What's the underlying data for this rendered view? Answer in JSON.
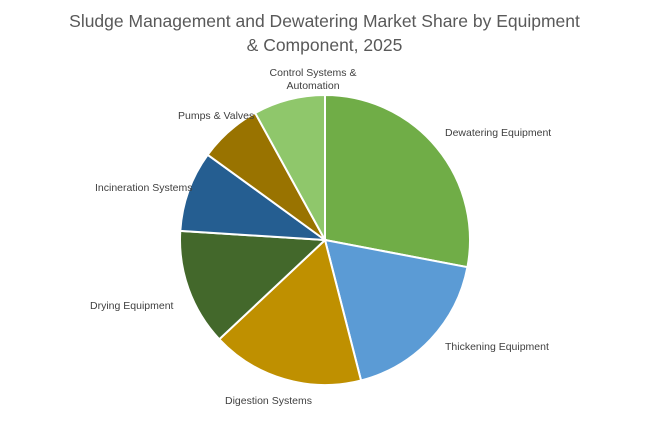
{
  "chart_data": {
    "type": "pie",
    "title_line1": "Sludge Management and Dewatering Market Share by Equipment",
    "title_line2": "& Component, 2025",
    "slices": [
      {
        "label": "Dewatering Equipment",
        "value": 28,
        "color": "#70AD47"
      },
      {
        "label": "Thickening Equipment",
        "value": 18,
        "color": "#5B9BD5"
      },
      {
        "label": "Digestion Systems",
        "value": 17,
        "color": "#BF9000"
      },
      {
        "label": "Drying Equipment",
        "value": 13,
        "color": "#43682B"
      },
      {
        "label": "Incineration Systems",
        "value": 9,
        "color": "#255E91"
      },
      {
        "label": "Pumps & Valves",
        "value": 7,
        "color": "#997300"
      },
      {
        "label": "Control Systems & Automation",
        "label_line1": "Control Systems &",
        "label_line2": "Automation",
        "value": 8,
        "color": "#8FC76B"
      }
    ]
  }
}
